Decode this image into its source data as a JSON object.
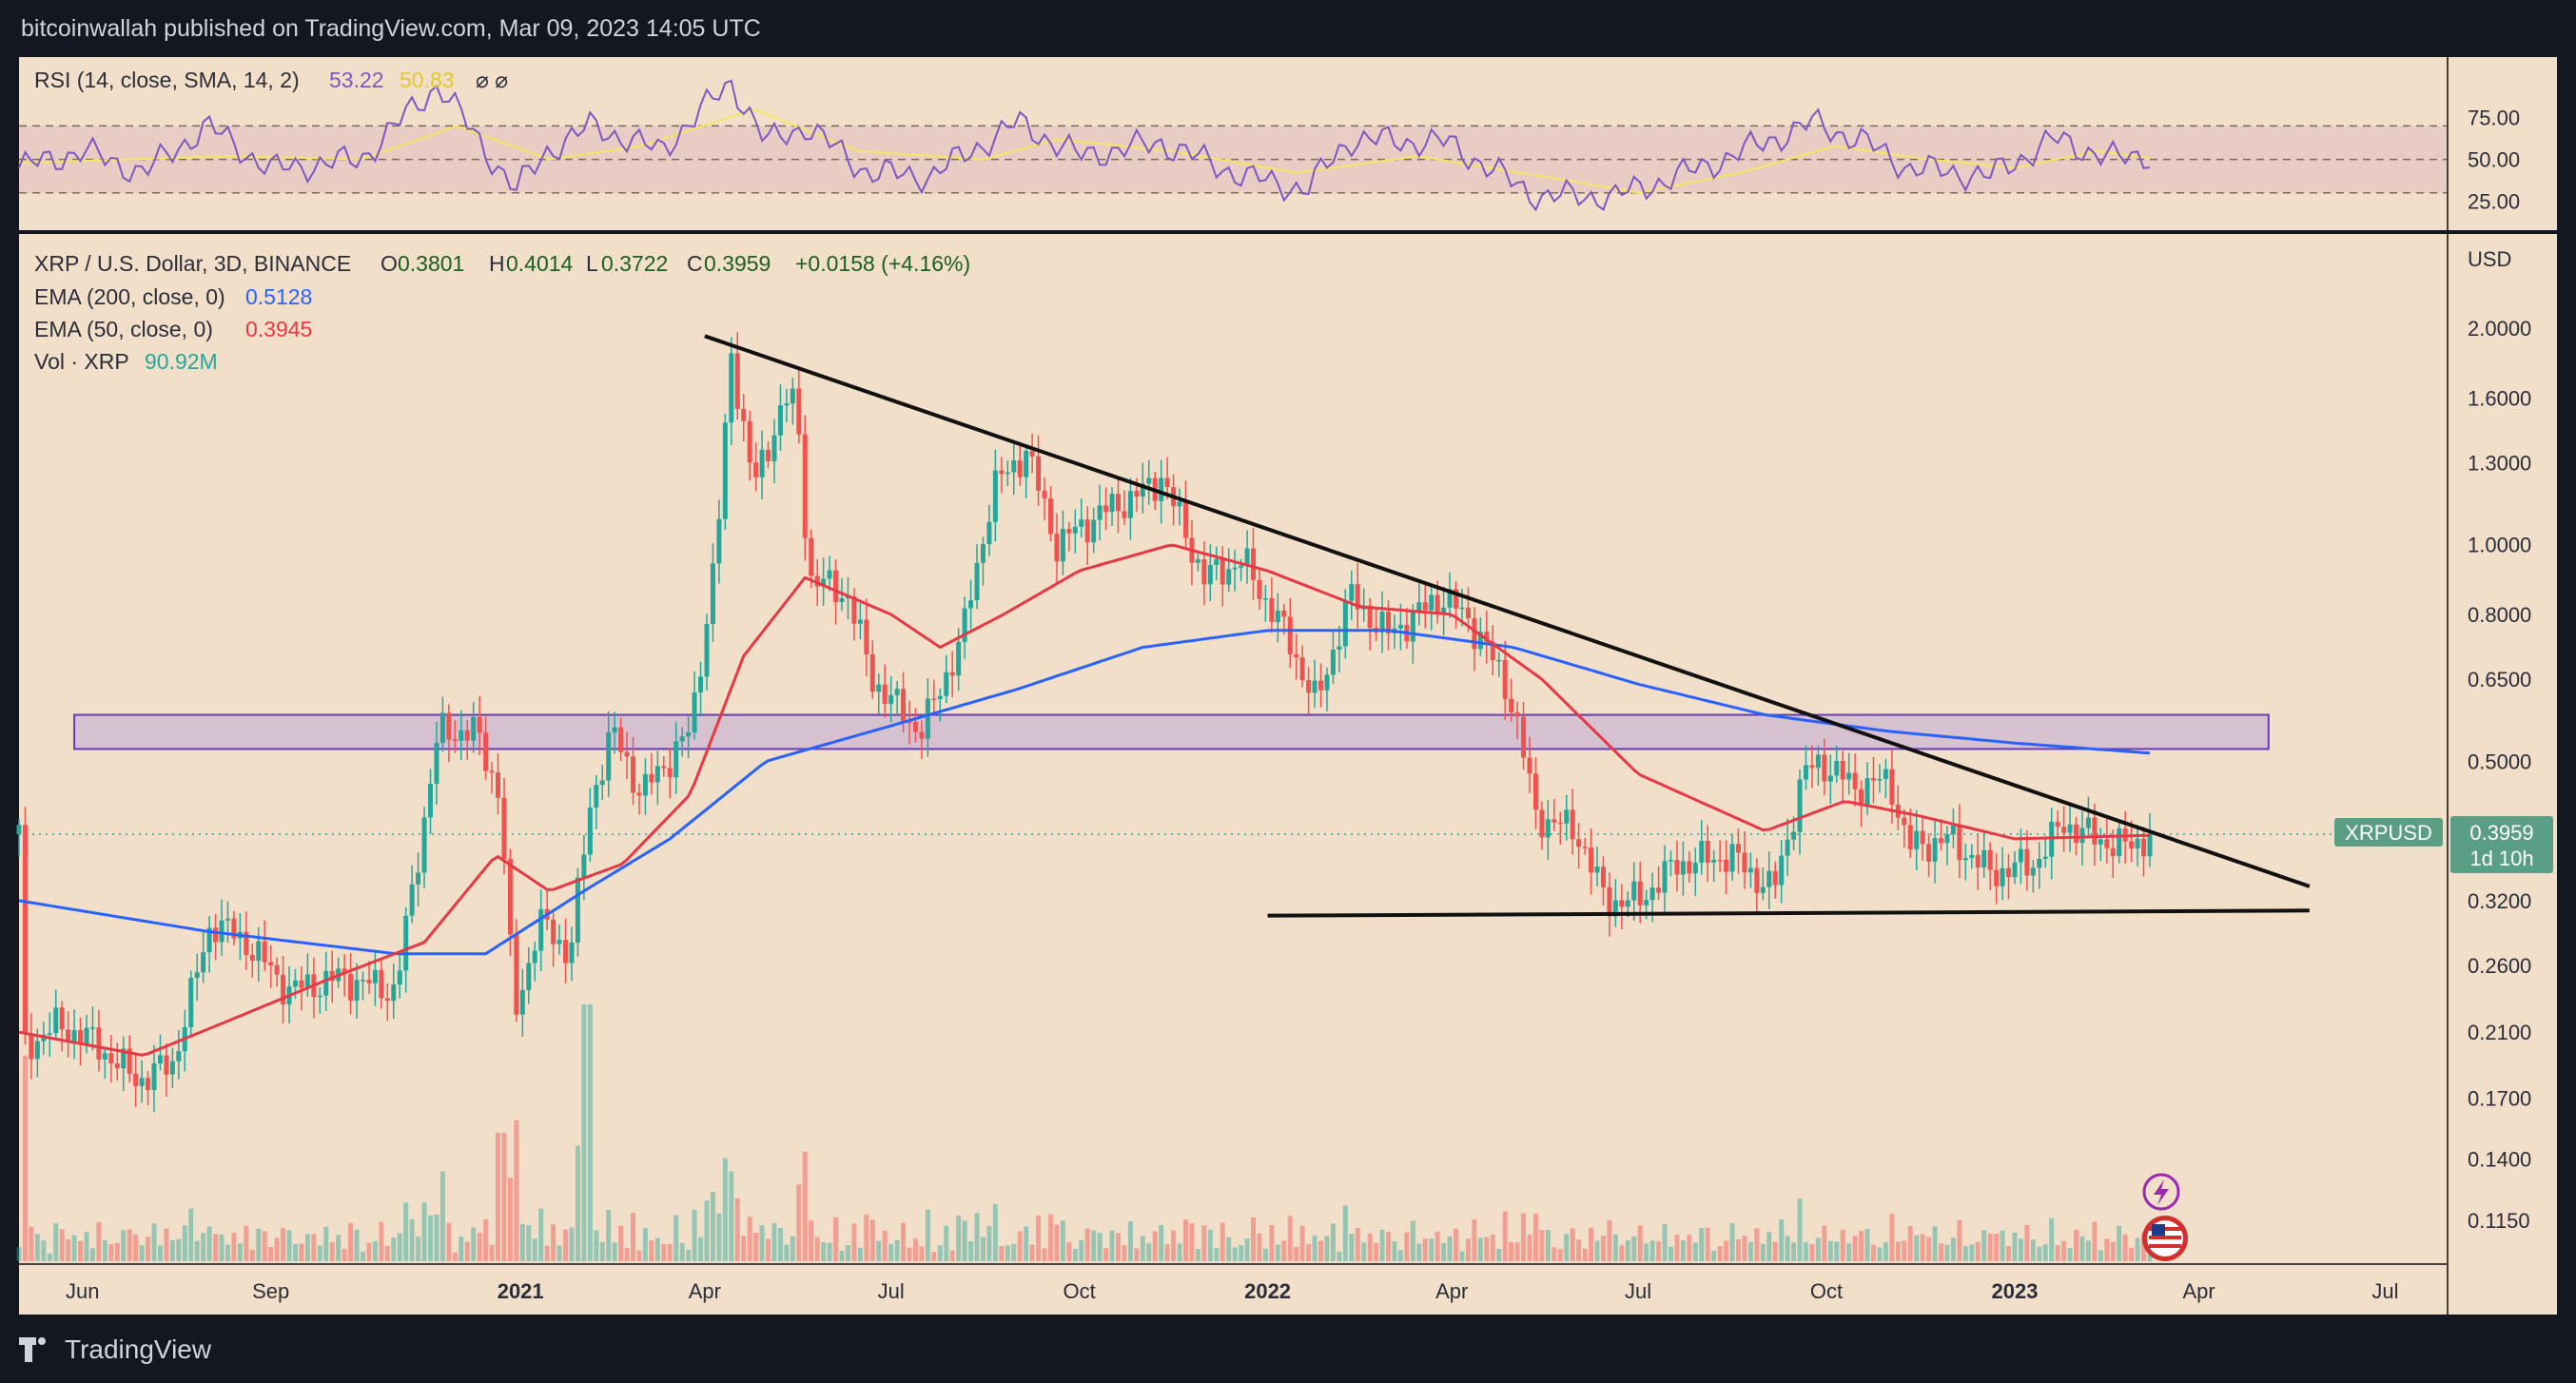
{
  "header": {
    "published_line": "bitcoinwallah published on TradingView.com, Mar 09, 2023 14:05 UTC"
  },
  "footer": {
    "brand": "TradingView"
  },
  "colors": {
    "background": "#f2dfc9",
    "frame": "#131722",
    "rsi_line": "#7e57c2",
    "rsi_sma": "#f5e663",
    "ema200": "#2962ff",
    "ema50": "#e53945",
    "candle_up": "#26a69a",
    "candle_down": "#ef5350",
    "zone_fill": "#b39ddb",
    "zone_stroke": "#673ab7",
    "price_tag": "#5b9e86"
  },
  "rsi_panel": {
    "label": "RSI (14, close, SMA, 14, 2)",
    "value": "53.22",
    "sma_value": "50.83",
    "ticks": [
      "75.00",
      "50.00",
      "25.00"
    ]
  },
  "legend": {
    "symbol_line": "XRP / U.S. Dollar, 3D, BINANCE",
    "o_label": "O",
    "o_value": "0.3801",
    "h_label": "H",
    "h_value": "0.4014",
    "l_label": "L",
    "l_value": "0.3722",
    "c_label": "C",
    "c_value": "0.3959",
    "change": "+0.0158 (+4.16%)",
    "ema200_label": "EMA (200, close, 0)",
    "ema200_value": "0.5128",
    "ema50_label": "EMA (50, close, 0)",
    "ema50_value": "0.3945",
    "vol_label": "Vol · XRP",
    "vol_value": "90.92M"
  },
  "price_axis": {
    "unit": "USD",
    "ticks": [
      "2.0000",
      "1.6000",
      "1.3000",
      "1.0000",
      "0.8000",
      "0.6500",
      "0.5000",
      "0.3200",
      "0.2600",
      "0.2100",
      "0.1700",
      "0.1400",
      "0.1150"
    ],
    "current_symbol": "XRPUSD",
    "current_price": "0.3959",
    "countdown": "1d 10h"
  },
  "time_axis": {
    "labels": [
      "Jun",
      "Sep",
      "2021",
      "Apr",
      "Jul",
      "Oct",
      "2022",
      "Apr",
      "Jul",
      "Oct",
      "2023",
      "Apr",
      "Jul"
    ]
  },
  "chart_data": {
    "type": "candlestick",
    "symbol": "XRPUSD",
    "interval": "3D",
    "exchange": "BINANCE",
    "scale": "log",
    "ohlc_last": {
      "open": 0.3801,
      "high": 0.4014,
      "low": 0.3722,
      "close": 0.3959,
      "change": 0.0158,
      "change_pct": 4.16
    },
    "close_path": [
      [
        "2020-05-03",
        0.2
      ],
      [
        "2020-05-20",
        0.215
      ],
      [
        "2020-06-05",
        0.205
      ],
      [
        "2020-06-28",
        0.18
      ],
      [
        "2020-07-15",
        0.19
      ],
      [
        "2020-08-03",
        0.3
      ],
      [
        "2020-08-20",
        0.28
      ],
      [
        "2020-09-10",
        0.24
      ],
      [
        "2020-10-05",
        0.25
      ],
      [
        "2020-11-01",
        0.24
      ],
      [
        "2020-11-22",
        0.55
      ],
      [
        "2020-12-10",
        0.55
      ],
      [
        "2020-12-22",
        0.45
      ],
      [
        "2020-12-29",
        0.22
      ],
      [
        "2021-01-10",
        0.3
      ],
      [
        "2021-01-25",
        0.27
      ],
      [
        "2021-02-05",
        0.45
      ],
      [
        "2021-02-15",
        0.55
      ],
      [
        "2021-03-01",
        0.45
      ],
      [
        "2021-03-25",
        0.55
      ],
      [
        "2021-04-07",
        1.0
      ],
      [
        "2021-04-14",
        1.85
      ],
      [
        "2021-04-25",
        1.2
      ],
      [
        "2021-05-10",
        1.6
      ],
      [
        "2021-05-16",
        1.55
      ],
      [
        "2021-05-22",
        0.9
      ],
      [
        "2021-06-10",
        0.85
      ],
      [
        "2021-06-22",
        0.65
      ],
      [
        "2021-07-15",
        0.55
      ],
      [
        "2021-07-22",
        0.6
      ],
      [
        "2021-08-05",
        0.75
      ],
      [
        "2021-08-20",
        1.2
      ],
      [
        "2021-09-05",
        1.35
      ],
      [
        "2021-09-20",
        1.0
      ],
      [
        "2021-10-10",
        1.1
      ],
      [
        "2021-11-05",
        1.2
      ],
      [
        "2021-11-10",
        1.25
      ],
      [
        "2021-12-01",
        0.9
      ],
      [
        "2021-12-20",
        0.95
      ],
      [
        "2022-01-10",
        0.75
      ],
      [
        "2022-01-25",
        0.6
      ],
      [
        "2022-02-10",
        0.85
      ],
      [
        "2022-03-01",
        0.75
      ],
      [
        "2022-03-28",
        0.85
      ],
      [
        "2022-04-15",
        0.75
      ],
      [
        "2022-05-01",
        0.6
      ],
      [
        "2022-05-12",
        0.42
      ],
      [
        "2022-06-01",
        0.4
      ],
      [
        "2022-06-15",
        0.32
      ],
      [
        "2022-07-01",
        0.32
      ],
      [
        "2022-07-20",
        0.36
      ],
      [
        "2022-08-15",
        0.37
      ],
      [
        "2022-09-05",
        0.33
      ],
      [
        "2022-09-20",
        0.48
      ],
      [
        "2022-09-28",
        0.5
      ],
      [
        "2022-10-15",
        0.46
      ],
      [
        "2022-11-01",
        0.47
      ],
      [
        "2022-11-10",
        0.38
      ],
      [
        "2022-12-01",
        0.39
      ],
      [
        "2022-12-20",
        0.35
      ],
      [
        "2023-01-10",
        0.36
      ],
      [
        "2023-01-25",
        0.41
      ],
      [
        "2023-02-10",
        0.39
      ],
      [
        "2023-02-25",
        0.38
      ],
      [
        "2023-03-09",
        0.3959
      ]
    ],
    "ema200_path": [
      [
        "2020-05-01",
        0.32
      ],
      [
        "2020-08-01",
        0.29
      ],
      [
        "2020-11-01",
        0.27
      ],
      [
        "2020-12-15",
        0.27
      ],
      [
        "2021-02-01",
        0.33
      ],
      [
        "2021-03-15",
        0.39
      ],
      [
        "2021-05-01",
        0.5
      ],
      [
        "2021-07-01",
        0.56
      ],
      [
        "2021-09-01",
        0.63
      ],
      [
        "2021-11-01",
        0.72
      ],
      [
        "2022-01-01",
        0.76
      ],
      [
        "2022-03-01",
        0.76
      ],
      [
        "2022-05-01",
        0.72
      ],
      [
        "2022-07-01",
        0.64
      ],
      [
        "2022-09-01",
        0.58
      ],
      [
        "2022-11-01",
        0.55
      ],
      [
        "2023-01-01",
        0.53
      ],
      [
        "2023-03-09",
        0.5128
      ]
    ],
    "ema50_path": [
      [
        "2020-05-01",
        0.21
      ],
      [
        "2020-07-01",
        0.195
      ],
      [
        "2020-08-15",
        0.22
      ],
      [
        "2020-10-01",
        0.25
      ],
      [
        "2020-11-15",
        0.28
      ],
      [
        "2020-12-20",
        0.37
      ],
      [
        "2021-01-15",
        0.33
      ],
      [
        "2021-02-20",
        0.36
      ],
      [
        "2021-03-25",
        0.45
      ],
      [
        "2021-04-20",
        0.7
      ],
      [
        "2021-05-20",
        0.9
      ],
      [
        "2021-07-01",
        0.8
      ],
      [
        "2021-07-25",
        0.72
      ],
      [
        "2021-08-25",
        0.8
      ],
      [
        "2021-10-01",
        0.92
      ],
      [
        "2021-11-15",
        1.0
      ],
      [
        "2022-01-01",
        0.92
      ],
      [
        "2022-02-15",
        0.82
      ],
      [
        "2022-04-01",
        0.8
      ],
      [
        "2022-05-15",
        0.65
      ],
      [
        "2022-07-01",
        0.48
      ],
      [
        "2022-09-01",
        0.4
      ],
      [
        "2022-10-10",
        0.44
      ],
      [
        "2022-11-15",
        0.42
      ],
      [
        "2023-01-01",
        0.39
      ],
      [
        "2023-03-09",
        0.3945
      ]
    ],
    "volume_spikes": [
      [
        "2020-11-24",
        0.35
      ],
      [
        "2020-12-23",
        0.5
      ],
      [
        "2020-12-30",
        0.55
      ],
      [
        "2021-01-30",
        0.45
      ],
      [
        "2021-02-02",
        1.0
      ],
      [
        "2021-04-14",
        0.35
      ],
      [
        "2021-05-19",
        0.3
      ]
    ],
    "rsi_path": [
      [
        "2020-05-01",
        45
      ],
      [
        "2020-06-01",
        55
      ],
      [
        "2020-07-01",
        42
      ],
      [
        "2020-08-01",
        70
      ],
      [
        "2020-09-01",
        44
      ],
      [
        "2020-10-15",
        50
      ],
      [
        "2020-11-22",
        95
      ],
      [
        "2020-12-15",
        55
      ],
      [
        "2020-12-30",
        32
      ],
      [
        "2021-01-15",
        56
      ],
      [
        "2021-02-05",
        70
      ],
      [
        "2021-03-10",
        55
      ],
      [
        "2021-04-14",
        96
      ],
      [
        "2021-05-01",
        60
      ],
      [
        "2021-05-20",
        70
      ],
      [
        "2021-06-20",
        42
      ],
      [
        "2021-07-20",
        40
      ],
      [
        "2021-09-01",
        72
      ],
      [
        "2021-10-01",
        52
      ],
      [
        "2021-11-10",
        60
      ],
      [
        "2021-12-20",
        40
      ],
      [
        "2022-01-20",
        32
      ],
      [
        "2022-02-10",
        62
      ],
      [
        "2022-03-30",
        60
      ],
      [
        "2022-05-12",
        28
      ],
      [
        "2022-06-20",
        28
      ],
      [
        "2022-08-01",
        45
      ],
      [
        "2022-09-25",
        72
      ],
      [
        "2022-10-20",
        60
      ],
      [
        "2022-11-10",
        45
      ],
      [
        "2022-12-20",
        40
      ],
      [
        "2023-01-20",
        62
      ],
      [
        "2023-02-20",
        50
      ],
      [
        "2023-03-09",
        53.22
      ]
    ],
    "rsi_sma_path": [
      [
        "2020-05-01",
        48
      ],
      [
        "2020-08-15",
        52
      ],
      [
        "2020-10-15",
        50
      ],
      [
        "2020-12-01",
        70
      ],
      [
        "2021-01-15",
        50
      ],
      [
        "2021-03-01",
        58
      ],
      [
        "2021-04-25",
        80
      ],
      [
        "2021-06-15",
        55
      ],
      [
        "2021-08-15",
        50
      ],
      [
        "2021-09-20",
        62
      ],
      [
        "2021-11-15",
        55
      ],
      [
        "2022-01-15",
        42
      ],
      [
        "2022-03-15",
        52
      ],
      [
        "2022-05-15",
        40
      ],
      [
        "2022-07-01",
        30
      ],
      [
        "2022-08-20",
        42
      ],
      [
        "2022-10-05",
        58
      ],
      [
        "2022-11-20",
        50
      ],
      [
        "2023-01-01",
        45
      ],
      [
        "2023-02-10",
        55
      ],
      [
        "2023-03-09",
        50.83
      ]
    ],
    "rsi_levels": [
      70,
      50,
      30
    ],
    "support_resistance_zone": [
      0.52,
      0.58
    ],
    "descending_trendline": [
      [
        "2021-04-01",
        1.95
      ],
      [
        "2023-05-25",
        0.335
      ]
    ],
    "support_line": [
      [
        "2022-01-01",
        0.305
      ],
      [
        "2023-05-25",
        0.31
      ]
    ],
    "time_range": [
      "2020-05-01",
      "2023-07-31"
    ]
  }
}
